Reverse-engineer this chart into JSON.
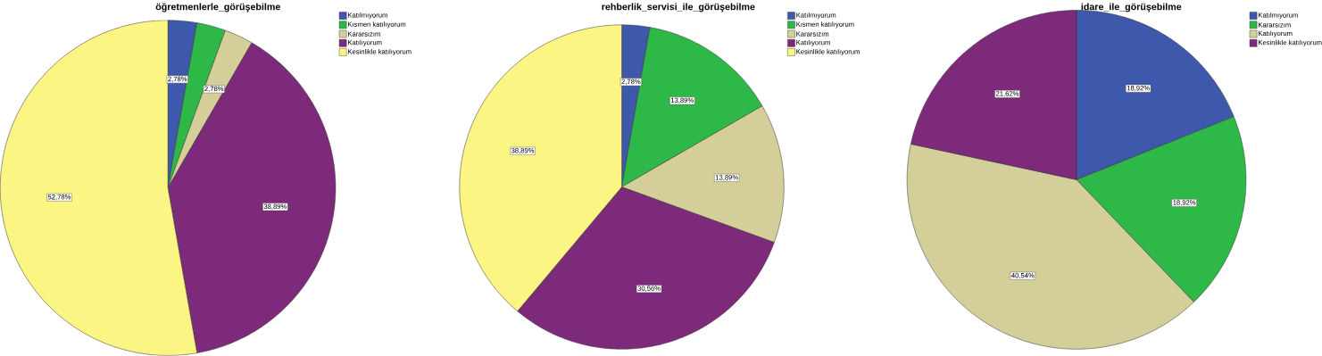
{
  "chart_data": [
    {
      "type": "pie",
      "title": "öğretmenlerle_görüşebilme",
      "categories": [
        "Katılmıyorum",
        "Kısmen katılıyorum",
        "Kararsızım",
        "Katılıyorum",
        "Kesinlikle katılıyorum"
      ],
      "values": [
        2.78,
        2.78,
        2.78,
        38.89,
        52.78
      ],
      "value_labels": [
        "2,78%",
        null,
        "2,78%",
        "38,89%",
        "52,78%"
      ],
      "colors": [
        "#3e58ac",
        "#2eb848",
        "#d4cf98",
        "#7d2a7b",
        "#fbf583"
      ],
      "legend": "top right"
    },
    {
      "type": "pie",
      "title": "rehberlik_servisi_ile_görüşebilme",
      "categories": [
        "Katılmıyorum",
        "Kısmen katılıyorum",
        "Kararsızım",
        "Katılıyorum",
        "Kesinlikle katılıyorum"
      ],
      "values": [
        2.78,
        13.89,
        13.89,
        30.56,
        38.89
      ],
      "value_labels": [
        "2,78%",
        "13,89%",
        "13,89%",
        "30,56%",
        "38,89%"
      ],
      "colors": [
        "#3e58ac",
        "#2eb848",
        "#d4cf98",
        "#7d2a7b",
        "#fbf583"
      ],
      "legend": "top right"
    },
    {
      "type": "pie",
      "title": "idare_ile_görüşebilme",
      "categories": [
        "Katılmıyorum",
        "Kararsızım",
        "Katılıyorum",
        "Kesinlikle katılıyorum"
      ],
      "values": [
        18.92,
        18.92,
        40.54,
        21.62
      ],
      "value_labels": [
        "18,92%",
        "18,92%",
        "40,54%",
        "21,62%"
      ],
      "colors": [
        "#3e58ac",
        "#2eb848",
        "#d4cf98",
        "#7d2a7b"
      ],
      "legend": "top right"
    }
  ]
}
